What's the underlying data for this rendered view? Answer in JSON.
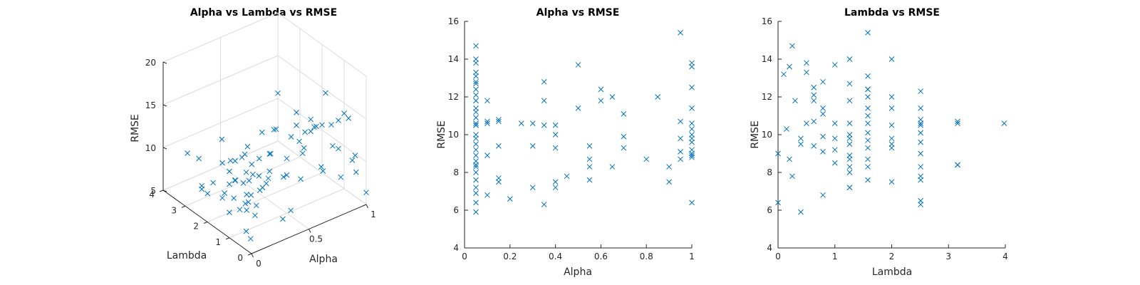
{
  "chart_data": [
    {
      "type": "scatter",
      "title": "Alpha vs Lambda vs RMSE",
      "xlabel": "Alpha",
      "ylabel": "Lambda",
      "zlabel": "RMSE",
      "xlim": [
        0,
        1
      ],
      "ylim": [
        0,
        4
      ],
      "zlim": [
        5,
        20
      ],
      "xticks": [
        "0",
        "0.5",
        "1"
      ],
      "yticks": [
        "0",
        "1",
        "2",
        "3",
        "4"
      ],
      "zticks": [
        "5",
        "10",
        "15",
        "20"
      ],
      "grid": true,
      "marker": "x",
      "color": "#0072BD",
      "points": [
        [
          0.05,
          0.1,
          9.0
        ],
        [
          0.05,
          0.2,
          13.6
        ],
        [
          0.05,
          0.25,
          14.7
        ],
        [
          0.05,
          0.4,
          10.0
        ],
        [
          0.05,
          0.5,
          13.3
        ],
        [
          0.05,
          0.63,
          11.8
        ],
        [
          0.05,
          0.79,
          8.4
        ],
        [
          0.05,
          1.0,
          13.7
        ],
        [
          0.05,
          1.26,
          10.5
        ],
        [
          0.05,
          1.58,
          12.4
        ],
        [
          0.05,
          2.0,
          9.3
        ],
        [
          0.05,
          2.51,
          7.6
        ],
        [
          0.05,
          3.16,
          10.6
        ],
        [
          0.05,
          1.26,
          7.2
        ],
        [
          0.05,
          1.58,
          8.3
        ],
        [
          0.05,
          0.3,
          5.9
        ],
        [
          0.05,
          0.5,
          6.4
        ],
        [
          0.05,
          2.51,
          8.0
        ],
        [
          0.05,
          1.0,
          11.4
        ],
        [
          0.05,
          1.26,
          12.0
        ],
        [
          0.1,
          0.3,
          9.5
        ],
        [
          0.1,
          0.63,
          11.8
        ],
        [
          0.1,
          1.26,
          10.7
        ],
        [
          0.1,
          2.51,
          6.8
        ],
        [
          0.1,
          0.8,
          8.8
        ],
        [
          0.15,
          0.4,
          10.8
        ],
        [
          0.15,
          1.0,
          9.2
        ],
        [
          0.15,
          2.0,
          7.5
        ],
        [
          0.15,
          3.16,
          9.4
        ],
        [
          0.15,
          1.58,
          7.7
        ],
        [
          0.2,
          1.26,
          6.6
        ],
        [
          0.25,
          0.63,
          10.6
        ],
        [
          0.3,
          1.58,
          7.2
        ],
        [
          0.3,
          2.51,
          9.5
        ],
        [
          0.3,
          0.8,
          10.6
        ],
        [
          0.35,
          1.0,
          12.8
        ],
        [
          0.35,
          2.0,
          11.8
        ],
        [
          0.35,
          0.4,
          6.3
        ],
        [
          0.35,
          3.16,
          10.5
        ],
        [
          0.4,
          0.63,
          10.5
        ],
        [
          0.4,
          1.26,
          10.0
        ],
        [
          0.4,
          2.51,
          9.3
        ],
        [
          0.4,
          1.58,
          7.5
        ],
        [
          0.4,
          0.3,
          7.2
        ],
        [
          0.45,
          2.0,
          7.8
        ],
        [
          0.5,
          1.0,
          11.4
        ],
        [
          0.5,
          1.58,
          13.7
        ],
        [
          0.55,
          0.63,
          9.4
        ],
        [
          0.55,
          1.26,
          8.7
        ],
        [
          0.55,
          2.51,
          8.3
        ],
        [
          0.55,
          3.16,
          7.6
        ],
        [
          0.6,
          2.0,
          12.4
        ],
        [
          0.6,
          0.8,
          11.8
        ],
        [
          0.65,
          1.58,
          12.0
        ],
        [
          0.65,
          2.51,
          8.3
        ],
        [
          0.7,
          1.26,
          11.0
        ],
        [
          0.7,
          0.4,
          9.9
        ],
        [
          0.7,
          3.16,
          9.3
        ],
        [
          0.8,
          1.0,
          8.7
        ],
        [
          0.85,
          1.58,
          12.0
        ],
        [
          0.9,
          2.51,
          8.3
        ],
        [
          0.9,
          0.63,
          7.6
        ],
        [
          0.95,
          1.58,
          15.4
        ],
        [
          0.95,
          2.0,
          10.7
        ],
        [
          0.95,
          1.26,
          9.8
        ],
        [
          0.95,
          2.51,
          9.1
        ],
        [
          0.95,
          0.2,
          8.7
        ],
        [
          1.0,
          0.8,
          13.6
        ],
        [
          1.0,
          1.0,
          13.8
        ],
        [
          1.0,
          1.26,
          12.5
        ],
        [
          1.0,
          1.58,
          11.4
        ],
        [
          1.0,
          2.0,
          10.6
        ],
        [
          1.0,
          2.51,
          10.3
        ],
        [
          1.0,
          3.16,
          9.9
        ],
        [
          1.0,
          4.0,
          10.6
        ],
        [
          1.0,
          0.5,
          9.8
        ],
        [
          1.0,
          0.63,
          9.0
        ],
        [
          1.0,
          3.16,
          8.4
        ],
        [
          1.0,
          2.51,
          8.9
        ],
        [
          1.0,
          0.0,
          6.4
        ],
        [
          1.0,
          1.26,
          9.2
        ]
      ]
    },
    {
      "type": "scatter",
      "title": "Alpha vs RMSE",
      "xlabel": "Alpha",
      "ylabel": "RMSE",
      "xlim": [
        0,
        1
      ],
      "ylim": [
        4,
        16
      ],
      "xticks": [
        "0",
        "0.2",
        "0.4",
        "0.6",
        "0.8",
        "1"
      ],
      "xtick_values": [
        0,
        0.2,
        0.4,
        0.6,
        0.8,
        1
      ],
      "yticks": [
        "4",
        "6",
        "8",
        "10",
        "12",
        "14",
        "16"
      ],
      "ytick_values": [
        4,
        6,
        8,
        10,
        12,
        14,
        16
      ],
      "marker": "x",
      "color": "#0072BD",
      "x": [
        0.05,
        0.05,
        0.05,
        0.05,
        0.05,
        0.05,
        0.05,
        0.05,
        0.05,
        0.05,
        0.05,
        0.05,
        0.05,
        0.05,
        0.05,
        0.05,
        0.05,
        0.05,
        0.05,
        0.05,
        0.05,
        0.05,
        0.05,
        0.05,
        0.05,
        0.05,
        0.05,
        0.05,
        0.05,
        0.05,
        0.05,
        0.1,
        0.1,
        0.1,
        0.1,
        0.1,
        0.15,
        0.15,
        0.15,
        0.15,
        0.15,
        0.2,
        0.25,
        0.3,
        0.3,
        0.3,
        0.35,
        0.35,
        0.35,
        0.35,
        0.4,
        0.4,
        0.4,
        0.4,
        0.4,
        0.45,
        0.5,
        0.5,
        0.55,
        0.55,
        0.55,
        0.55,
        0.6,
        0.6,
        0.65,
        0.65,
        0.7,
        0.7,
        0.7,
        0.8,
        0.85,
        0.9,
        0.9,
        0.95,
        0.95,
        0.95,
        0.95,
        0.95,
        1.0,
        1.0,
        1.0,
        1.0,
        1.0,
        1.0,
        1.0,
        1.0,
        1.0,
        1.0,
        1.0,
        1.0,
        1.0,
        1.0
      ],
      "y": [
        14.7,
        14.0,
        13.8,
        13.3,
        13.1,
        12.7,
        12.4,
        12.1,
        11.8,
        11.8,
        11.4,
        11.2,
        10.9,
        10.6,
        10.5,
        10.0,
        9.8,
        9.5,
        9.2,
        8.9,
        8.6,
        8.4,
        8.3,
        8.0,
        7.6,
        7.2,
        6.9,
        6.4,
        5.9,
        10.5,
        12.8,
        11.8,
        10.7,
        10.6,
        8.9,
        6.8,
        10.8,
        10.7,
        9.4,
        7.7,
        7.5,
        6.6,
        10.6,
        10.6,
        9.4,
        7.2,
        12.8,
        11.8,
        10.5,
        6.3,
        10.5,
        10.0,
        9.3,
        7.5,
        7.2,
        7.8,
        13.7,
        11.4,
        9.4,
        8.7,
        8.3,
        7.6,
        12.4,
        11.8,
        12.0,
        8.3,
        11.1,
        9.9,
        9.3,
        8.7,
        12.0,
        8.3,
        7.5,
        15.4,
        10.7,
        9.8,
        9.1,
        8.7,
        13.8,
        13.6,
        12.5,
        11.4,
        10.6,
        10.3,
        10.0,
        9.8,
        9.6,
        9.2,
        9.0,
        8.9,
        8.8,
        6.4
      ]
    },
    {
      "type": "scatter",
      "title": "Lambda vs RMSE",
      "xlabel": "Lambda",
      "ylabel": "RMSE",
      "xlim": [
        0,
        4
      ],
      "ylim": [
        4,
        16
      ],
      "xticks": [
        "0",
        "1",
        "2",
        "3",
        "4"
      ],
      "xtick_values": [
        0,
        1,
        2,
        3,
        4
      ],
      "yticks": [
        "4",
        "6",
        "8",
        "10",
        "12",
        "14",
        "16"
      ],
      "ytick_values": [
        4,
        6,
        8,
        10,
        12,
        14,
        16
      ],
      "marker": "x",
      "color": "#0072BD",
      "x": [
        0.0,
        0.0,
        0.1,
        0.15,
        0.2,
        0.2,
        0.25,
        0.25,
        0.3,
        0.4,
        0.4,
        0.4,
        0.5,
        0.5,
        0.5,
        0.63,
        0.63,
        0.63,
        0.63,
        0.63,
        0.79,
        0.79,
        0.79,
        0.79,
        0.79,
        0.79,
        1.0,
        1.0,
        1.0,
        1.0,
        1.0,
        1.26,
        1.26,
        1.26,
        1.26,
        1.26,
        1.26,
        1.26,
        1.26,
        1.26,
        1.26,
        1.26,
        1.26,
        1.26,
        1.58,
        1.58,
        1.58,
        1.58,
        1.58,
        1.58,
        1.58,
        1.58,
        1.58,
        1.58,
        1.58,
        1.58,
        1.58,
        1.58,
        2.0,
        2.0,
        2.0,
        2.0,
        2.0,
        2.0,
        2.0,
        2.0,
        2.51,
        2.51,
        2.51,
        2.51,
        2.51,
        2.51,
        2.51,
        2.51,
        2.51,
        2.51,
        2.51,
        2.51,
        2.51,
        3.16,
        3.16,
        3.16,
        3.16,
        3.98
      ],
      "y": [
        9.0,
        6.4,
        13.2,
        10.3,
        13.6,
        8.7,
        14.7,
        7.8,
        11.8,
        9.8,
        9.5,
        5.9,
        13.8,
        13.3,
        10.6,
        12.5,
        12.1,
        11.8,
        10.7,
        9.4,
        12.8,
        11.4,
        11.1,
        9.9,
        9.1,
        6.8,
        13.7,
        10.6,
        9.8,
        9.2,
        8.5,
        14.0,
        12.7,
        11.8,
        10.6,
        10.0,
        9.8,
        9.5,
        8.9,
        8.7,
        8.3,
        8.0,
        7.2,
        7.2,
        15.4,
        13.1,
        12.4,
        12.4,
        12.0,
        11.4,
        11.0,
        10.6,
        10.1,
        9.7,
        9.3,
        8.7,
        8.3,
        7.6,
        14.0,
        12.0,
        11.4,
        10.5,
        9.8,
        9.5,
        9.3,
        7.5,
        12.3,
        11.4,
        10.8,
        10.6,
        10.5,
        10.1,
        9.6,
        9.0,
        8.3,
        7.8,
        7.6,
        6.5,
        6.3,
        10.7,
        10.6,
        8.4,
        8.4,
        10.6
      ]
    }
  ]
}
